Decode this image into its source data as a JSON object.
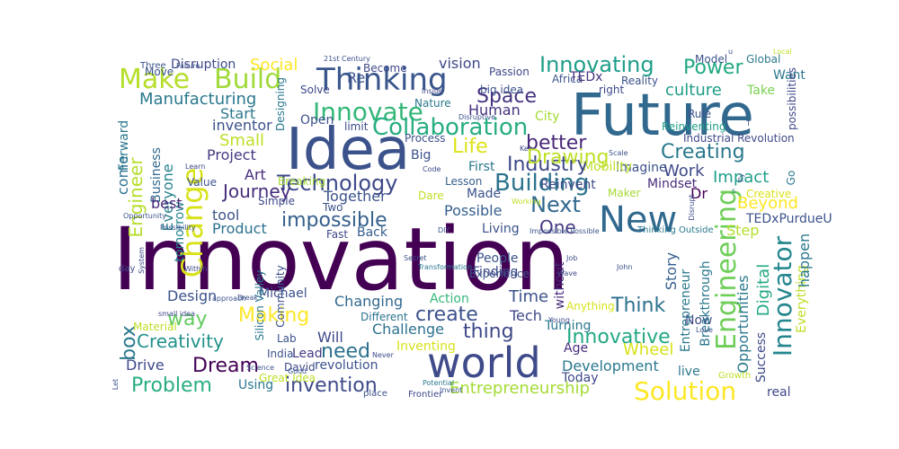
{
  "wordcloud": {
    "words": [
      {
        "text": "Innovation",
        "color": "#440154"
      },
      {
        "text": "Future",
        "color": "#31688e"
      },
      {
        "text": "Idea",
        "color": "#3b528b"
      },
      {
        "text": "world",
        "color": "#3e4a89"
      },
      {
        "text": "New",
        "color": "#31688e"
      },
      {
        "text": "Thinking",
        "color": "#39568c"
      },
      {
        "text": "Make",
        "color": "#b5de2b"
      },
      {
        "text": "Build",
        "color": "#a0da39"
      },
      {
        "text": "Innovate",
        "color": "#35b779"
      },
      {
        "text": "Collaboration",
        "color": "#26ad81"
      },
      {
        "text": "Change",
        "color": "#d8e219"
      },
      {
        "text": "Technology",
        "color": "#3e4989"
      },
      {
        "text": "Building",
        "color": "#2c728e"
      },
      {
        "text": "Creating",
        "color": "#2a788e"
      },
      {
        "text": "Innovating",
        "color": "#1f9e89"
      },
      {
        "text": "Power",
        "color": "#22a884"
      },
      {
        "text": "Space",
        "color": "#46327e"
      },
      {
        "text": "better",
        "color": "#482878"
      },
      {
        "text": "Life",
        "color": "#dde318"
      },
      {
        "text": "impossible",
        "color": "#355f8d"
      },
      {
        "text": "Next",
        "color": "#31688e"
      },
      {
        "text": "One",
        "color": "#443983"
      },
      {
        "text": "Engineering",
        "color": "#6ece58"
      },
      {
        "text": "Innovator",
        "color": "#24868e"
      },
      {
        "text": "Solution",
        "color": "#fde725"
      },
      {
        "text": "Innovative",
        "color": "#22a884"
      },
      {
        "text": "Creativity",
        "color": "#21918c"
      },
      {
        "text": "Dream",
        "color": "#440154"
      },
      {
        "text": "invention",
        "color": "#3e4a89"
      },
      {
        "text": "create",
        "color": "#3b528b"
      },
      {
        "text": "Think",
        "color": "#2d708e"
      },
      {
        "text": "way",
        "color": "#63cb5f"
      },
      {
        "text": "Making",
        "color": "#fde725"
      },
      {
        "text": "Journey",
        "color": "#472d7b"
      },
      {
        "text": "Problem",
        "color": "#29af7f"
      },
      {
        "text": "need",
        "color": "#2c728e"
      },
      {
        "text": "thing",
        "color": "#3e4989"
      },
      {
        "text": "Entrepreneurship",
        "color": "#a5db36"
      },
      {
        "text": "Development",
        "color": "#2a788e"
      },
      {
        "text": "Manufacturing",
        "color": "#2a788e"
      },
      {
        "text": "Social",
        "color": "#fde725"
      },
      {
        "text": "vision",
        "color": "#3e4989"
      },
      {
        "text": "culture",
        "color": "#1f9e89"
      },
      {
        "text": "Disruption",
        "color": "#3e4a89"
      },
      {
        "text": "Start",
        "color": "#2a788e"
      },
      {
        "text": "Small",
        "color": "#bddf26"
      },
      {
        "text": "Project",
        "color": "#443983"
      },
      {
        "text": "Art",
        "color": "#472d7b"
      },
      {
        "text": "Engineer",
        "color": "#b5de2b"
      },
      {
        "text": "Everyone",
        "color": "#26828e"
      },
      {
        "text": "come",
        "color": "#2c728e"
      },
      {
        "text": "Forward",
        "color": "#2a788e"
      },
      {
        "text": "Business",
        "color": "#31688e"
      },
      {
        "text": "tomorrow",
        "color": "#25848e"
      },
      {
        "text": "best",
        "color": "#482878"
      },
      {
        "text": "tool",
        "color": "#3b528b"
      },
      {
        "text": "Product",
        "color": "#2c728e"
      },
      {
        "text": "box",
        "color": "#2a788e"
      },
      {
        "text": "Design",
        "color": "#3b528b"
      },
      {
        "text": "Drive",
        "color": "#3e4989"
      },
      {
        "text": "Work",
        "color": "#3e4989"
      },
      {
        "text": "Impact",
        "color": "#1f9e89"
      },
      {
        "text": "Beyond",
        "color": "#fde725"
      },
      {
        "text": "Step",
        "color": "#b5de2b"
      },
      {
        "text": "Story",
        "color": "#355f8d"
      },
      {
        "text": "Digital",
        "color": "#22a884"
      },
      {
        "text": "Opportunities",
        "color": "#2a788e"
      },
      {
        "text": "Everything",
        "color": "#bddf26"
      },
      {
        "text": "happen",
        "color": "#2a788e"
      },
      {
        "text": "Wheel",
        "color": "#d8e219"
      },
      {
        "text": "Together",
        "color": "#3b528b"
      },
      {
        "text": "Possible",
        "color": "#355f8d"
      },
      {
        "text": "Human",
        "color": "#46327e"
      },
      {
        "text": "City",
        "color": "#a5db36"
      },
      {
        "text": "Tech",
        "color": "#3e4989"
      },
      {
        "text": "Turning",
        "color": "#2a788e"
      },
      {
        "text": "Challenge",
        "color": "#2c728e"
      },
      {
        "text": "Inventing",
        "color": "#d8e219"
      },
      {
        "text": "Action",
        "color": "#35b779"
      },
      {
        "text": "Changing",
        "color": "#31688e"
      },
      {
        "text": "Time",
        "color": "#3b528b"
      },
      {
        "text": "Michael",
        "color": "#3b528b"
      },
      {
        "text": "Will",
        "color": "#3e4989"
      },
      {
        "text": "Lead",
        "color": "#443983"
      },
      {
        "text": "revolution",
        "color": "#3b528b"
      },
      {
        "text": "Using",
        "color": "#2a788e"
      },
      {
        "text": "Age",
        "color": "#472d7b"
      },
      {
        "text": "Now",
        "color": "#3e4a89"
      },
      {
        "text": "Today",
        "color": "#3e4989"
      },
      {
        "text": "live",
        "color": "#2a788e"
      },
      {
        "text": "real",
        "color": "#3e4989"
      },
      {
        "text": "Success",
        "color": "#3e4989"
      },
      {
        "text": "Entrepreneur",
        "color": "#2a788e"
      },
      {
        "text": "Breakthrough",
        "color": "#2a788e"
      },
      {
        "text": "Imagine",
        "color": "#3b528b"
      },
      {
        "text": "Mindset",
        "color": "#472d7b"
      },
      {
        "text": "Dr",
        "color": "#440154"
      },
      {
        "text": "Reinvent",
        "color": "#3e4989"
      },
      {
        "text": "Mobility",
        "color": "#bddf26"
      },
      {
        "text": "First",
        "color": "#2a788e"
      },
      {
        "text": "Big",
        "color": "#3b528b"
      },
      {
        "text": "Made",
        "color": "#3b528b"
      },
      {
        "text": "Back",
        "color": "#355f8d"
      },
      {
        "text": "Living",
        "color": "#3b528b"
      },
      {
        "text": "Fast",
        "color": "#3e4989"
      },
      {
        "text": "People",
        "color": "#3b528b"
      },
      {
        "text": "Finding",
        "color": "#3e4989"
      },
      {
        "text": "without",
        "color": "#472d7b"
      },
      {
        "text": "Different",
        "color": "#2c728e"
      },
      {
        "text": "Anything",
        "color": "#d8e219"
      },
      {
        "text": "Want",
        "color": "#2a788e"
      },
      {
        "text": "Take",
        "color": "#7ad151"
      },
      {
        "text": "Global",
        "color": "#2a788e"
      },
      {
        "text": "Model",
        "color": "#3b528b"
      },
      {
        "text": "possibilities",
        "color": "#3e4989"
      },
      {
        "text": "Go",
        "color": "#2a788e"
      },
      {
        "text": "Creative",
        "color": "#d8e219"
      },
      {
        "text": "Maker",
        "color": "#a5db36"
      },
      {
        "text": "Industrial Revolution",
        "color": "#3e4989"
      },
      {
        "text": "TEDxPurdueU",
        "color": "#3b528b"
      },
      {
        "text": "Reinventing",
        "color": "#1f9e89"
      },
      {
        "text": "Reality",
        "color": "#3b528b"
      },
      {
        "text": "right",
        "color": "#3e4989"
      },
      {
        "text": "Africa",
        "color": "#3b528b"
      },
      {
        "text": "TEDx",
        "color": "#46327e"
      },
      {
        "text": "Passion",
        "color": "#3e4989"
      },
      {
        "text": "big idea",
        "color": "#3b528b"
      },
      {
        "text": "Solve",
        "color": "#3e4989"
      },
      {
        "text": "Open",
        "color": "#3b528b"
      },
      {
        "text": "limit",
        "color": "#3e4989"
      },
      {
        "text": "inventor",
        "color": "#3b528b"
      },
      {
        "text": "Process",
        "color": "#3b528b"
      },
      {
        "text": "Value",
        "color": "#3b528b"
      },
      {
        "text": "Breaking",
        "color": "#a5db36"
      },
      {
        "text": "Simple",
        "color": "#3e4989"
      },
      {
        "text": "Dare",
        "color": "#bddf26"
      },
      {
        "text": "Two",
        "color": "#3b528b"
      },
      {
        "text": "Lesson",
        "color": "#355f8d"
      },
      {
        "text": "Experience",
        "color": "#3b528b"
      },
      {
        "text": "Community",
        "color": "#3b528b"
      },
      {
        "text": "Silicon Valley",
        "color": "#2a788e"
      },
      {
        "text": "Lab",
        "color": "#3b528b"
      },
      {
        "text": "India",
        "color": "#3b528b"
      },
      {
        "text": "David",
        "color": "#3e4989"
      },
      {
        "text": "Great Idea",
        "color": "#bddf26"
      },
      {
        "text": "Material",
        "color": "#bddf26"
      },
      {
        "text": "day",
        "color": "#3e4989"
      },
      {
        "text": "Become",
        "color": "#3e4989"
      },
      {
        "text": "Nature",
        "color": "#2a788e"
      },
      {
        "text": "Move",
        "color": "#3b528b"
      },
      {
        "text": "Three",
        "color": "#3b528b"
      },
      {
        "text": "Failure",
        "color": "#3b528b"
      },
      {
        "text": "21st Century",
        "color": "#3b528b"
      },
      {
        "text": "Designing",
        "color": "#2a788e"
      },
      {
        "text": "Disruptive",
        "color": "#3b528b"
      },
      {
        "text": "Inside",
        "color": "#3e4989"
      },
      {
        "text": "Code",
        "color": "#3e4989"
      },
      {
        "text": "Learn",
        "color": "#3e4989"
      },
      {
        "text": "Working",
        "color": "#bddf26"
      },
      {
        "text": "Scale",
        "color": "#3b528b"
      },
      {
        "text": "Key",
        "color": "#3e4989"
      },
      {
        "text": "Disrupt",
        "color": "#3e4989"
      },
      {
        "text": "Thinking Outside",
        "color": "#2a788e"
      },
      {
        "text": "Impossible Possible",
        "color": "#3b528b"
      },
      {
        "text": "DIY",
        "color": "#3b528b"
      },
      {
        "text": "Opportunity",
        "color": "#3b528b"
      },
      {
        "text": "Possibility",
        "color": "#3b528b"
      },
      {
        "text": "System",
        "color": "#3e4989"
      },
      {
        "text": "Within",
        "color": "#3e4989"
      },
      {
        "text": "small idea",
        "color": "#3e4989"
      },
      {
        "text": "approach",
        "color": "#3b528b"
      },
      {
        "text": "Break",
        "color": "#3b528b"
      },
      {
        "text": "Science",
        "color": "#3b528b"
      },
      {
        "text": "Good",
        "color": "#3b528b"
      },
      {
        "text": "Never",
        "color": "#3e4989"
      },
      {
        "text": "place",
        "color": "#3b528b"
      },
      {
        "text": "Frontier",
        "color": "#3e4989"
      },
      {
        "text": "Potential",
        "color": "#2a788e"
      },
      {
        "text": "Invent",
        "color": "#3b528b"
      },
      {
        "text": "Young",
        "color": "#3e4989"
      },
      {
        "text": "Love",
        "color": "#3b528b"
      },
      {
        "text": "Growth",
        "color": "#bddf26"
      },
      {
        "text": "Let",
        "color": "#3b528b"
      },
      {
        "text": "Secret",
        "color": "#3b528b"
      },
      {
        "text": "Transformation",
        "color": "#2a788e"
      },
      {
        "text": "Wave",
        "color": "#3e4989"
      },
      {
        "text": "John",
        "color": "#3b528b"
      },
      {
        "text": "Job",
        "color": "#3b528b"
      },
      {
        "text": "fly",
        "color": "#3b528b"
      },
      {
        "text": "Rule",
        "color": "#3b528b"
      },
      {
        "text": "Industry",
        "color": "#3e4989"
      },
      {
        "text": "Drawing",
        "color": "#bddf26"
      },
      {
        "text": "Re",
        "color": "#3b528b"
      },
      {
        "text": "s",
        "color": "#2a788e"
      },
      {
        "text": "u",
        "color": "#3b528b"
      },
      {
        "text": "T",
        "color": "#3b528b"
      },
      {
        "text": "Local",
        "color": "#bddf26"
      },
      {
        "text": "Leap",
        "color": "#3b528b"
      },
      {
        "text": "Lead",
        "color": "#3b528b"
      },
      {
        "text": "Pace",
        "color": "#bddf26"
      }
    ]
  }
}
